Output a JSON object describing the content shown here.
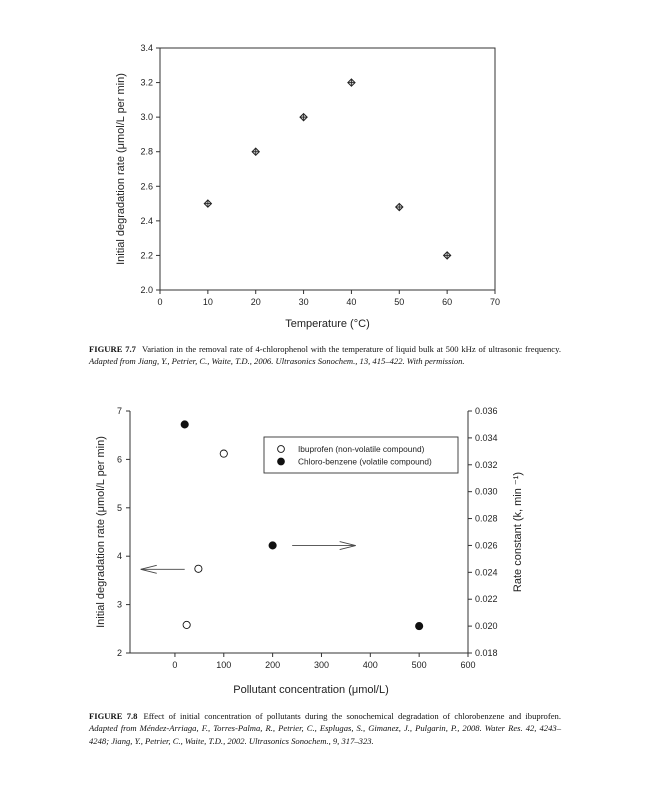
{
  "chart_data": [
    {
      "type": "scatter",
      "xlabel": "Temperature (°C)",
      "ylabel": "Initial degradation rate (μmol/L per min)",
      "xlim": [
        0,
        70
      ],
      "ylim": [
        2.0,
        3.4
      ],
      "xticks": [
        "0",
        "10",
        "20",
        "30",
        "40",
        "50",
        "60",
        "70"
      ],
      "yticks": [
        "2.0",
        "2.2",
        "2.4",
        "2.6",
        "2.8",
        "3.0",
        "3.2",
        "3.4"
      ],
      "marker": "crossed-diamond",
      "grid": false,
      "series": [
        {
          "x": [
            10,
            20,
            30,
            40,
            50,
            60
          ],
          "y": [
            2.5,
            2.8,
            3.0,
            3.2,
            2.48,
            2.2
          ]
        }
      ]
    },
    {
      "type": "scatter",
      "xlabel": "Pollutant concentration (μmol/L)",
      "ylabel": "Initial degradation rate (μmol/L per min)",
      "y2label": "Rate constant (k, min ⁻¹)",
      "xlim": [
        -92,
        600
      ],
      "ylim": [
        2,
        7
      ],
      "y2lim": [
        0.018,
        0.036
      ],
      "xticks": [
        "0",
        "100",
        "200",
        "300",
        "400",
        "500",
        "600"
      ],
      "yticks": [
        "2",
        "3",
        "4",
        "5",
        "6",
        "7"
      ],
      "y2ticks": [
        "0.018",
        "0.020",
        "0.022",
        "0.024",
        "0.026",
        "0.028",
        "0.030",
        "0.032",
        "0.034",
        "0.036"
      ],
      "grid": false,
      "legend": "top-right",
      "series": [
        {
          "name": "Ibuprofen (non-volatile compound)",
          "axis": "left",
          "marker": "open-circle",
          "x": [
            24,
            48,
            100
          ],
          "y": [
            2.58,
            3.74,
            6.12
          ]
        },
        {
          "name": "Chloro-benzene (volatile compound)",
          "axis": "right",
          "marker": "filled-circle",
          "x": [
            20,
            200,
            500
          ],
          "y": [
            0.035,
            0.026,
            0.02
          ]
        }
      ],
      "annotations": [
        {
          "type": "arrow",
          "direction": "left",
          "meaning": "left axis",
          "x_from": 20,
          "x_to": -70,
          "y": 3.73
        },
        {
          "type": "arrow",
          "direction": "right",
          "meaning": "right axis",
          "x_from": 240,
          "x_to": 370,
          "y": 4.22
        }
      ]
    }
  ],
  "captions": {
    "fig77": {
      "label": "FIGURE 7.7",
      "text": "Variation in the removal rate of 4-chlorophenol with the temperature of liquid bulk at 500 kHz of ultrasonic frequency.",
      "source": "Adapted from Jiang, Y., Petrier, C., Waite, T.D., 2006. Ultrasonics Sonochem., 13, 415–422. With permission."
    },
    "fig78": {
      "label": "FIGURE 7.8",
      "text": "Effect of initial concentration of pollutants during the sonochemical degradation of chlorobenzene and ibuprofen.",
      "source": "Adapted from Méndez-Arriaga, F., Torres-Palma, R., Petrier, C., Esplugas, S., Gimanez, J., Pulgarin, P., 2008. Water Res. 42, 4243–4248; Jiang, Y., Petrier, C., Waite, T.D., 2002. Ultrasonics Sonochem., 9, 317–323."
    }
  }
}
